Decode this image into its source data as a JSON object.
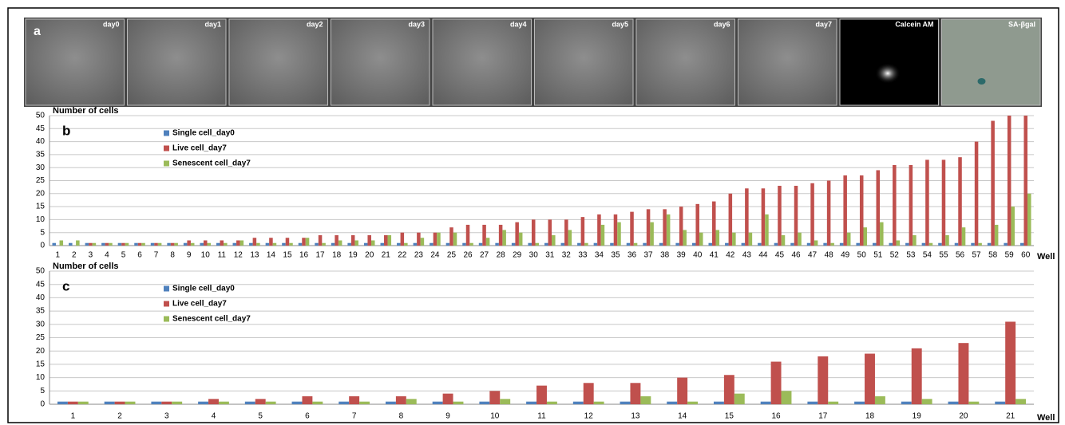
{
  "panel_a": {
    "label": "a",
    "images": [
      "day0",
      "day1",
      "day2",
      "day3",
      "day4",
      "day5",
      "day6",
      "day7",
      "Calcein AM",
      "SA-βgal"
    ]
  },
  "chart_data": [
    {
      "type": "bar",
      "panel_label": "b",
      "y_label": "Number of cells",
      "x_label": "Well",
      "categories": [
        1,
        2,
        3,
        4,
        5,
        6,
        7,
        8,
        9,
        10,
        11,
        12,
        13,
        14,
        15,
        16,
        17,
        18,
        19,
        20,
        21,
        22,
        23,
        24,
        25,
        26,
        27,
        28,
        29,
        30,
        31,
        32,
        33,
        34,
        35,
        36,
        37,
        38,
        39,
        40,
        41,
        42,
        43,
        44,
        45,
        46,
        47,
        48,
        49,
        50,
        51,
        52,
        53,
        54,
        55,
        56,
        57,
        58,
        59,
        60
      ],
      "series": [
        {
          "name": "Single cell_day0",
          "color": "#4f81bd",
          "values": [
            1,
            1,
            1,
            1,
            1,
            1,
            1,
            1,
            1,
            1,
            1,
            1,
            1,
            1,
            1,
            1,
            1,
            1,
            1,
            1,
            1,
            1,
            1,
            1,
            1,
            1,
            1,
            1,
            1,
            1,
            1,
            1,
            1,
            1,
            1,
            1,
            1,
            1,
            1,
            1,
            1,
            1,
            1,
            1,
            1,
            1,
            1,
            1,
            1,
            1,
            1,
            1,
            1,
            1,
            1,
            1,
            1,
            1,
            1,
            1
          ]
        },
        {
          "name": "Live cell_day7",
          "color": "#c0504d",
          "values": [
            0,
            0,
            1,
            1,
            1,
            1,
            1,
            1,
            2,
            2,
            2,
            2,
            3,
            3,
            3,
            3,
            4,
            4,
            4,
            4,
            4,
            5,
            5,
            5,
            7,
            8,
            8,
            8,
            9,
            10,
            10,
            10,
            11,
            12,
            12,
            13,
            14,
            14,
            15,
            16,
            17,
            20,
            22,
            22,
            23,
            23,
            24,
            25,
            27,
            27,
            29,
            31,
            31,
            33,
            33,
            34,
            40,
            48,
            50,
            50
          ]
        },
        {
          "name": "Senescent cell_day7",
          "color": "#9bbb59",
          "values": [
            2,
            2,
            1,
            1,
            1,
            1,
            1,
            1,
            1,
            1,
            1,
            2,
            1,
            1,
            1,
            3,
            1,
            2,
            2,
            2,
            4,
            1,
            3,
            5,
            5,
            1,
            3,
            6,
            5,
            1,
            4,
            6,
            1,
            8,
            9,
            1,
            9,
            12,
            6,
            5,
            6,
            5,
            5,
            12,
            4,
            5,
            2,
            1,
            5,
            7,
            9,
            2,
            4,
            1,
            4,
            7,
            1,
            8,
            15,
            20
          ]
        }
      ],
      "ylim": [
        0,
        50
      ],
      "yticks": [
        0,
        5,
        10,
        15,
        20,
        25,
        30,
        35,
        40,
        45,
        50
      ],
      "grid": true,
      "legend": "top-left"
    },
    {
      "type": "bar",
      "panel_label": "c",
      "y_label": "Number of cells",
      "x_label": "Well",
      "categories": [
        1,
        2,
        3,
        4,
        5,
        6,
        7,
        8,
        9,
        10,
        11,
        12,
        13,
        14,
        15,
        16,
        17,
        18,
        19,
        20,
        21
      ],
      "series": [
        {
          "name": "Single cell_day0",
          "color": "#4f81bd",
          "values": [
            1,
            1,
            1,
            1,
            1,
            1,
            1,
            1,
            1,
            1,
            1,
            1,
            1,
            1,
            1,
            1,
            1,
            1,
            1,
            1,
            1
          ]
        },
        {
          "name": "Live cell_day7",
          "color": "#c0504d",
          "values": [
            1,
            1,
            1,
            2,
            2,
            3,
            3,
            3,
            4,
            5,
            7,
            8,
            8,
            10,
            11,
            16,
            18,
            19,
            21,
            23,
            31
          ]
        },
        {
          "name": "Senescent cell_day7",
          "color": "#9bbb59",
          "values": [
            1,
            1,
            1,
            1,
            1,
            1,
            1,
            2,
            1,
            2,
            1,
            1,
            3,
            1,
            4,
            5,
            1,
            3,
            2,
            1,
            2
          ]
        }
      ],
      "ylim": [
        0,
        50
      ],
      "yticks": [
        0,
        5,
        10,
        15,
        20,
        25,
        30,
        35,
        40,
        45,
        50
      ],
      "grid": true,
      "legend": "top-left"
    }
  ]
}
